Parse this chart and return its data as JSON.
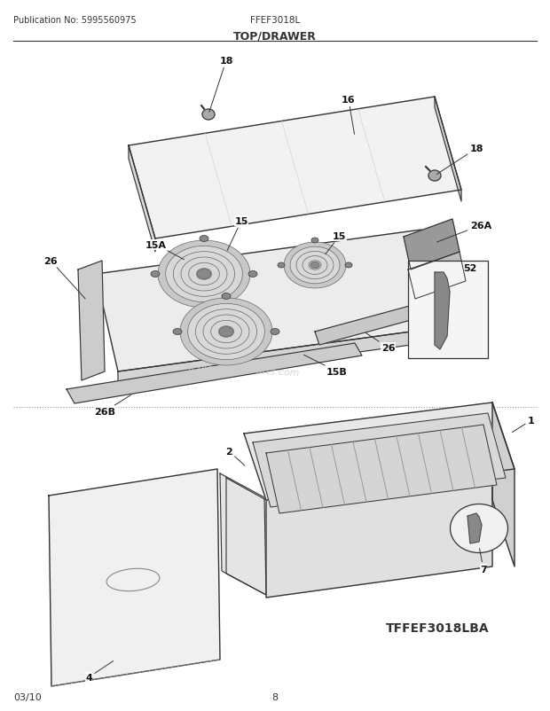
{
  "title": "TOP/DRAWER",
  "pub_no": "Publication No: 5995560975",
  "model": "FFEF3018L",
  "footer_date": "03/10",
  "footer_page": "8",
  "footer_model": "TFFEF3018LBA",
  "watermark": "eReplacementParts.com",
  "bg_color": "#ffffff",
  "line_color": "#333333",
  "label_color": "#111111"
}
